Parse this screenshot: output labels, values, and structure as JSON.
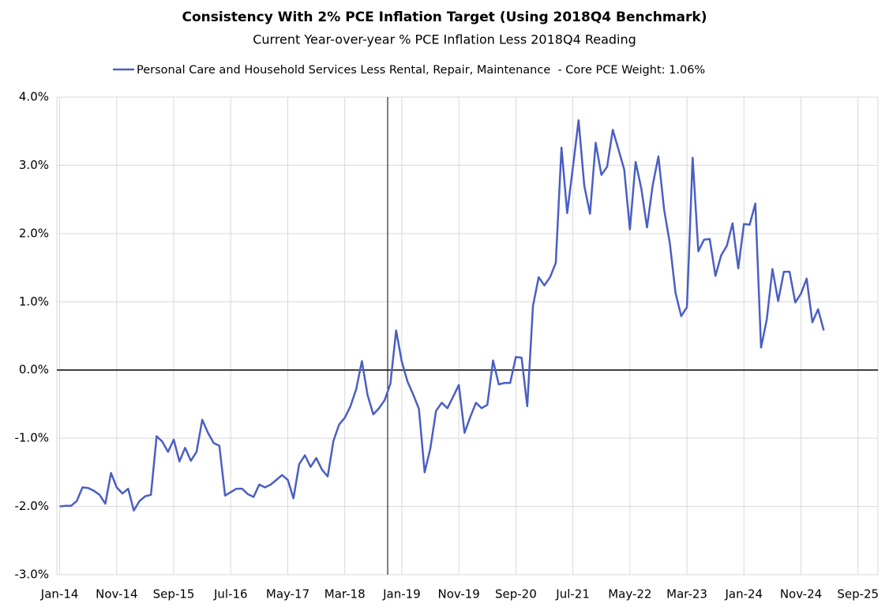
{
  "chart_data": {
    "type": "line",
    "title": "Consistency With 2% PCE Inflation Target (Using 2018Q4 Benchmark)",
    "subtitle": "Current Year-over-year % PCE Inflation Less 2018Q4 Reading",
    "categories": [
      "Jan-14",
      null,
      null,
      null,
      null,
      null,
      null,
      null,
      null,
      null,
      "Nov-14",
      null,
      null,
      null,
      null,
      null,
      null,
      null,
      null,
      null,
      "Sep-15",
      null,
      null,
      null,
      null,
      null,
      null,
      null,
      null,
      null,
      "Jul-16",
      null,
      null,
      null,
      null,
      null,
      null,
      null,
      null,
      null,
      "May-17",
      null,
      null,
      null,
      null,
      null,
      null,
      null,
      null,
      null,
      "Mar-18",
      null,
      null,
      null,
      null,
      null,
      null,
      null,
      null,
      null,
      "Jan-19",
      null,
      null,
      null,
      null,
      null,
      null,
      null,
      null,
      null,
      "Nov-19",
      null,
      null,
      null,
      null,
      null,
      null,
      null,
      null,
      null,
      "Sep-20",
      null,
      null,
      null,
      null,
      null,
      null,
      null,
      null,
      null,
      "Jul-21",
      null,
      null,
      null,
      null,
      null,
      null,
      null,
      null,
      null,
      "May-22",
      null,
      null,
      null,
      null,
      null,
      null,
      null,
      null,
      null,
      "Mar-23",
      null,
      null,
      null,
      null,
      null,
      null,
      null,
      null,
      null,
      "Jan-24",
      null,
      null,
      null,
      null,
      null,
      null,
      null,
      null,
      null,
      "Nov-24",
      null,
      null,
      null,
      null,
      null,
      null,
      null,
      null,
      null,
      "Sep-25",
      null,
      null,
      null
    ],
    "series": [
      {
        "name": "Personal Care and Household Services Less Rental, Repair, Maintenance  - Core PCE Weight: 1.06%",
        "color": "#4a5fc4",
        "values": [
          -2.0,
          -1.99,
          -1.99,
          -1.92,
          -1.72,
          -1.73,
          -1.77,
          -1.83,
          -1.96,
          -1.51,
          -1.72,
          -1.81,
          -1.74,
          -2.06,
          -1.92,
          -1.85,
          -1.83,
          -0.97,
          -1.05,
          -1.2,
          -1.02,
          -1.34,
          -1.14,
          -1.33,
          -1.2,
          -0.73,
          -0.92,
          -1.07,
          -1.11,
          -1.84,
          -1.79,
          -1.74,
          -1.74,
          -1.82,
          -1.86,
          -1.68,
          -1.72,
          -1.68,
          -1.61,
          -1.54,
          -1.61,
          -1.88,
          -1.38,
          -1.25,
          -1.42,
          -1.29,
          -1.46,
          -1.56,
          -1.04,
          -0.8,
          -0.7,
          -0.53,
          -0.28,
          0.13,
          -0.37,
          -0.65,
          -0.56,
          -0.44,
          -0.2,
          0.58,
          0.12,
          -0.17,
          -0.36,
          -0.57,
          -1.5,
          -1.15,
          -0.6,
          -0.48,
          -0.56,
          -0.39,
          -0.22,
          -0.92,
          -0.69,
          -0.48,
          -0.56,
          -0.51,
          0.14,
          -0.21,
          -0.19,
          -0.19,
          0.19,
          0.18,
          -0.53,
          0.94,
          1.36,
          1.24,
          1.36,
          1.57,
          3.26,
          2.3,
          2.97,
          3.66,
          2.7,
          2.29,
          3.33,
          2.86,
          2.98,
          3.52,
          3.23,
          2.94,
          2.06,
          3.05,
          2.66,
          2.09,
          2.71,
          3.13,
          2.35,
          1.86,
          1.13,
          0.79,
          0.92,
          3.11,
          1.74,
          1.91,
          1.92,
          1.38,
          1.68,
          1.82,
          2.15,
          1.49,
          2.14,
          2.13,
          2.44,
          0.33,
          0.74,
          1.48,
          1.01,
          1.44,
          1.44,
          0.99,
          1.12,
          1.34,
          0.7,
          0.89,
          0.58,
          null,
          null,
          null,
          null,
          null,
          null,
          null,
          null,
          null
        ]
      }
    ],
    "ylim": [
      -3,
      4
    ],
    "yticks": [
      {
        "value": -3,
        "label": "-3.0%"
      },
      {
        "value": -2,
        "label": "-2.0%"
      },
      {
        "value": -1,
        "label": "-1.0%"
      },
      {
        "value": 0,
        "label": "0.0%"
      },
      {
        "value": 1,
        "label": "1.0%"
      },
      {
        "value": 2,
        "label": "2.0%"
      },
      {
        "value": 3,
        "label": "3.0%"
      },
      {
        "value": 4,
        "label": "4.0%"
      }
    ],
    "grid": true
  }
}
